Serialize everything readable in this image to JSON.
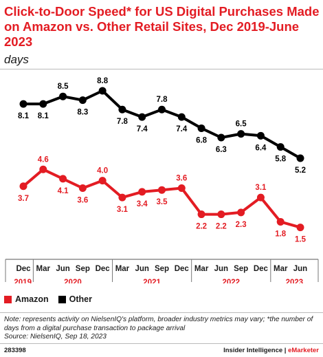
{
  "header": {
    "title": "Click-to-Door Speed* for US Digital Purchases Made on Amazon vs. Other Retail Sites, Dec 2019-June 2023",
    "subtitle": "days"
  },
  "chart_data": {
    "type": "line",
    "categories": [
      "Dec",
      "Mar",
      "Jun",
      "Sep",
      "Dec",
      "Mar",
      "Jun",
      "Sep",
      "Dec",
      "Mar",
      "Jun",
      "Sep",
      "Dec",
      "Mar",
      "Jun"
    ],
    "years": [
      {
        "label": "2019",
        "start": 0,
        "end": 0
      },
      {
        "label": "2020",
        "start": 1,
        "end": 4
      },
      {
        "label": "2021",
        "start": 5,
        "end": 8
      },
      {
        "label": "2022",
        "start": 9,
        "end": 12
      },
      {
        "label": "2023",
        "start": 13,
        "end": 14
      }
    ],
    "series": [
      {
        "name": "Other",
        "color": "#000000",
        "values": [
          8.1,
          8.1,
          8.5,
          8.3,
          8.8,
          7.8,
          7.4,
          7.8,
          7.4,
          6.8,
          6.3,
          6.5,
          6.4,
          5.8,
          5.2
        ],
        "labels": [
          "8.1",
          "8.1",
          "8.5",
          "8.3",
          "8.8",
          "7.8",
          "7.4",
          "7.8",
          "7.4",
          "6.8",
          "6.3",
          "6.5",
          "6.4",
          "5.8",
          "5.2"
        ]
      },
      {
        "name": "Amazon",
        "color": "#e31c23",
        "values": [
          3.7,
          4.6,
          4.1,
          3.6,
          4.0,
          3.1,
          3.4,
          3.5,
          3.6,
          2.2,
          2.2,
          2.3,
          3.1,
          1.8,
          1.5
        ],
        "labels": [
          "3.7",
          "4.6",
          "4.1",
          "3.6",
          "4.0",
          "3.1",
          "3.4",
          "3.5",
          "3.6",
          "2.2",
          "2.2",
          "2.3",
          "3.1",
          "1.8",
          "1.5"
        ]
      }
    ],
    "ylim": [
      0,
      9.5
    ],
    "grid": false
  },
  "legend": [
    {
      "name": "Amazon",
      "color": "#e31c23"
    },
    {
      "name": "Other",
      "color": "#000000"
    }
  ],
  "note": "Note: represents activity on NielsenIQ's platform, broader industry metrics may vary; *the number of days from a digital purchase transaction to package arrival",
  "source": "Source: NielsenIQ, Sep 18, 2023",
  "footer": {
    "chart_id": "283398",
    "brand_main": "Insider Intelligence | ",
    "brand_accent": "eMarketer"
  }
}
